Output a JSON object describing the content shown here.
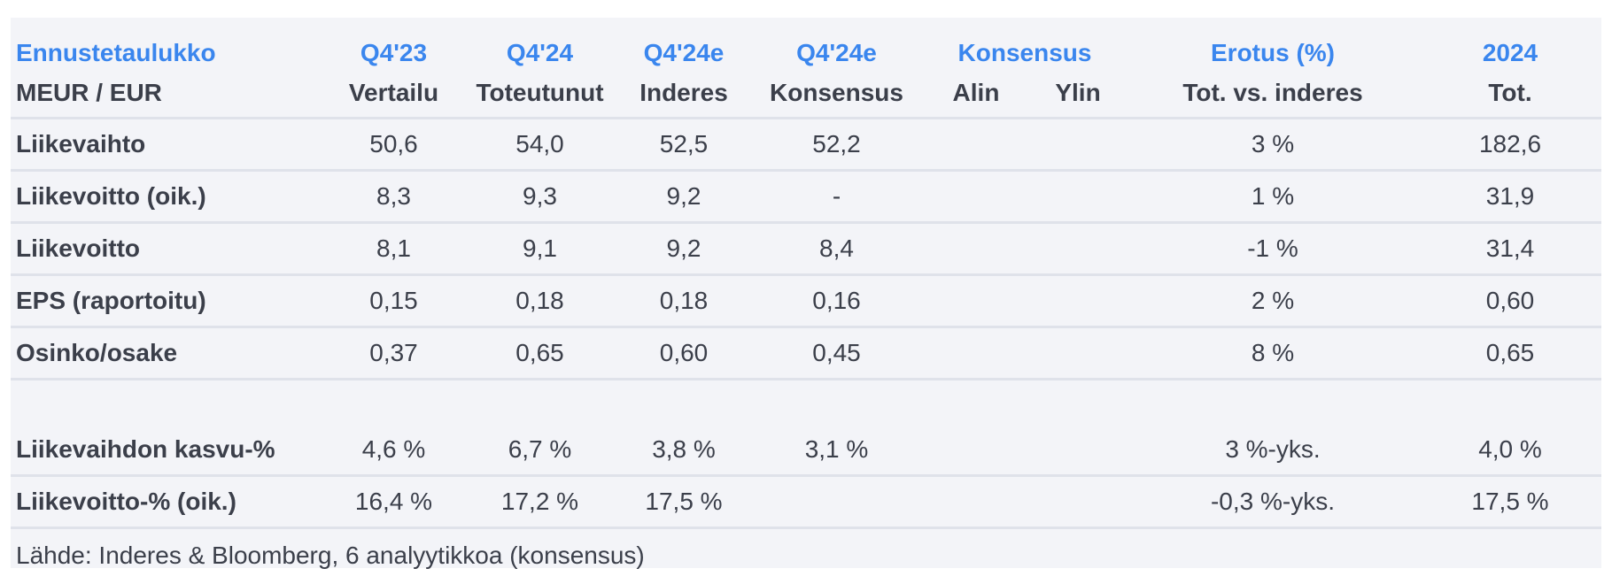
{
  "header": {
    "title": "Ennustetaulukko",
    "subtitle": "MEUR / EUR",
    "columns_top": [
      "Q4'23",
      "Q4'24",
      "Q4'24e",
      "Q4'24e",
      "Konsensus",
      "Erotus (%)",
      "2024"
    ],
    "columns_sub": [
      "Vertailu",
      "Toteutunut",
      "Inderes",
      "Konsensus",
      "Alin",
      "Ylin",
      "Tot. vs. inderes",
      "Tot."
    ]
  },
  "rows": [
    {
      "label": "Liikevaihto",
      "q423": "50,6",
      "q424": "54,0",
      "inderes": "52,5",
      "konsensus": "52,2",
      "alin": "",
      "ylin": "",
      "erotus": "3 %",
      "tot2024": "182,6"
    },
    {
      "label": "Liikevoitto (oik.)",
      "q423": "8,3",
      "q424": "9,3",
      "inderes": "9,2",
      "konsensus": "-",
      "alin": "",
      "ylin": "",
      "erotus": "1 %",
      "tot2024": "31,9"
    },
    {
      "label": "Liikevoitto",
      "q423": "8,1",
      "q424": "9,1",
      "inderes": "9,2",
      "konsensus": "8,4",
      "alin": "",
      "ylin": "",
      "erotus": "-1 %",
      "tot2024": "31,4"
    },
    {
      "label": "EPS (raportoitu)",
      "q423": "0,15",
      "q424": "0,18",
      "inderes": "0,18",
      "konsensus": "0,16",
      "alin": "",
      "ylin": "",
      "erotus": "2 %",
      "tot2024": "0,60"
    },
    {
      "label": "Osinko/osake",
      "q423": "0,37",
      "q424": "0,65",
      "inderes": "0,60",
      "konsensus": "0,45",
      "alin": "",
      "ylin": "",
      "erotus": "8 %",
      "tot2024": "0,65"
    }
  ],
  "rows2": [
    {
      "label": "Liikevaihdon kasvu-%",
      "q423": "4,6 %",
      "q424": "6,7 %",
      "inderes": "3,8 %",
      "konsensus": "3,1 %",
      "alin": "",
      "ylin": "",
      "erotus": "3 %-yks.",
      "tot2024": "4,0 %"
    },
    {
      "label": "Liikevoitto-% (oik.)",
      "q423": "16,4 %",
      "q424": "17,2 %",
      "inderes": "17,5 %",
      "konsensus": "",
      "alin": "",
      "ylin": "",
      "erotus": "-0,3 %-yks.",
      "tot2024": "17,5 %"
    }
  ],
  "source": "Lähde: Inderes & Bloomberg, 6 analyytikkoa  (konsensus)"
}
